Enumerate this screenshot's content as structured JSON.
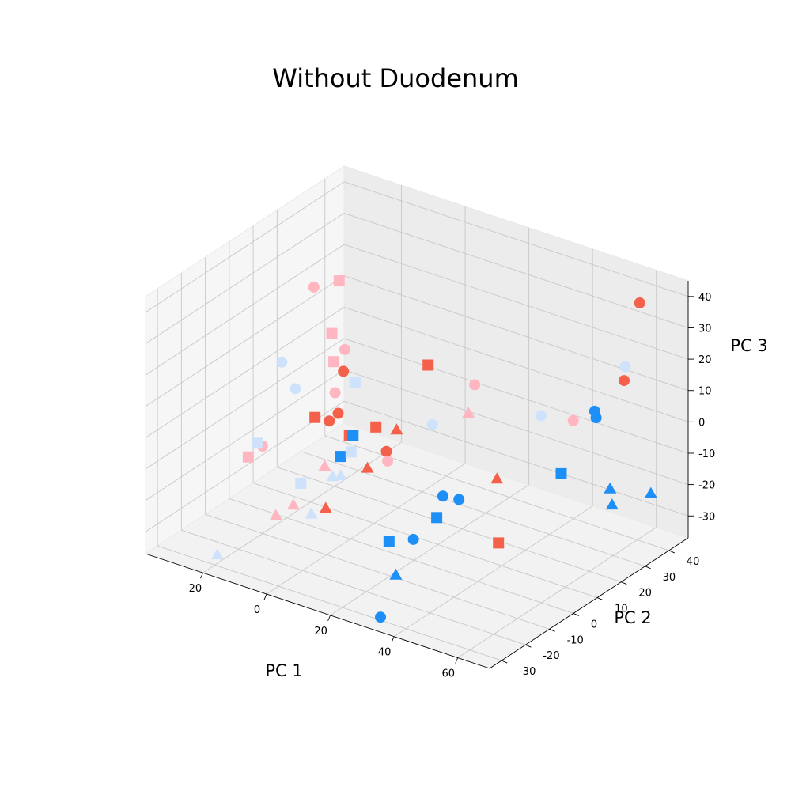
{
  "chart_data": {
    "type": "scatter",
    "projection": "3d",
    "title": "Without Duodenum",
    "xlabel": "PC 1",
    "ylabel": "PC 2",
    "zlabel": "PC 3",
    "xlim": [
      -38,
      70
    ],
    "ylim": [
      -35,
      48
    ],
    "zlim": [
      -37,
      45
    ],
    "xticks": [
      -20,
      0,
      20,
      40,
      60
    ],
    "yticks": [
      -30,
      -20,
      -10,
      0,
      10,
      20,
      30,
      40
    ],
    "zticks": [
      -30,
      -20,
      -10,
      0,
      10,
      20,
      30,
      40
    ],
    "grid": true,
    "legend": null,
    "colors": {
      "tomato": "#f4604a",
      "pink": "#ffb6c1",
      "dodgerblue": "#1e8ff7",
      "lightblue": "#cfe2fb",
      "pane": "#f2f2f2",
      "pane_edge": "#e9e9e9",
      "grid": "#c8c8c8"
    },
    "series": [
      {
        "color": "#f4604a",
        "marker": "circle",
        "points": [
          [
            55.0,
            47.7,
            33.0
          ],
          [
            54.4,
            42.0,
            10.9
          ],
          [
            -8.4,
            8.3,
            9.5
          ],
          [
            -7.2,
            4.5,
            -1.6
          ],
          [
            -9.6,
            4.0,
            -4.6
          ],
          [
            5.1,
            8.3,
            -11.5
          ]
        ]
      },
      {
        "color": "#f4604a",
        "marker": "square",
        "points": [
          [
            16.0,
            11.2,
            18.3
          ],
          [
            -15.6,
            6.0,
            -6.5
          ],
          [
            -1.8,
            2.0,
            -5.7
          ],
          [
            2.4,
            7.5,
            -4.2
          ],
          [
            45.0,
            2.0,
            -24.0
          ]
        ]
      },
      {
        "color": "#f4604a",
        "marker": "triangle",
        "points": [
          [
            34.7,
            15.1,
            -13.6
          ],
          [
            4.7,
            13.1,
            -7.1
          ],
          [
            2.6,
            3.7,
            -15.3
          ],
          [
            -1.8,
            -7.9,
            -23.8
          ]
        ]
      },
      {
        "color": "#ffb6c1",
        "marker": "circle",
        "points": [
          [
            -31.5,
            26.7,
            19.3
          ],
          [
            23.1,
            21.2,
            9.4
          ],
          [
            53.0,
            22.6,
            7.4
          ],
          [
            -16.0,
            19.0,
            8.5
          ],
          [
            -10.2,
            7.2,
            2.6
          ],
          [
            -20.8,
            -9.0,
            -9.9
          ],
          [
            8.4,
            4.4,
            -11.5
          ]
        ]
      },
      {
        "color": "#ffb6c1",
        "marker": "square",
        "points": [
          [
            -21.8,
            21.3,
            10.5
          ],
          [
            -27.0,
            31.3,
            20.5
          ],
          [
            -18.3,
            17.5,
            4.6
          ],
          [
            -24.0,
            -10.7,
            -13.6
          ]
        ]
      },
      {
        "color": "#ffb6c1",
        "marker": "triangle",
        "points": [
          [
            17.4,
            26.2,
            -4.1
          ],
          [
            -10.3,
            -17.4,
            -24.2
          ],
          [
            -4.9,
            -4.2,
            -13.3
          ],
          [
            -8.2,
            -12.9,
            -22.4
          ]
        ]
      },
      {
        "color": "#1e8ff7",
        "marker": "circle",
        "points": [
          [
            51.6,
            34.0,
            2.1
          ],
          [
            70.0,
            8.9,
            23.0
          ],
          [
            32.8,
            -5.0,
            -9.7
          ],
          [
            41.6,
            -10.0,
            -5.3
          ],
          [
            34.5,
            -19.6,
            -15.6
          ],
          [
            32.2,
            -30.3,
            -35.8
          ]
        ]
      },
      {
        "color": "#1e8ff7",
        "marker": "square",
        "points": [
          [
            -3.8,
            6.2,
            -8.3
          ],
          [
            -3.6,
            0.6,
            -12.2
          ],
          [
            58.0,
            10.9,
            -2.0
          ],
          [
            38.6,
            -15.3,
            -9.4
          ],
          [
            30.9,
            -25.0,
            -14.8
          ]
        ]
      },
      {
        "color": "#1e8ff7",
        "marker": "triangle",
        "points": [
          [
            59.0,
            30.0,
            -16.0
          ],
          [
            74.8,
            26.0,
            -10.1
          ],
          [
            67.0,
            20.2,
            -13.5
          ],
          [
            38.0,
            -31.6,
            -19.7
          ]
        ]
      },
      {
        "color": "#cfe2fb",
        "marker": "circle",
        "points": [
          [
            58.3,
            37.3,
            19.0
          ],
          [
            -26.0,
            6.0,
            7.6
          ],
          [
            -22.1,
            6.5,
            0.2
          ],
          [
            34.6,
            33.6,
            -2.8
          ],
          [
            14.5,
            15.0,
            -3.1
          ]
        ]
      },
      {
        "color": "#cfe2fb",
        "marker": "square",
        "points": [
          [
            -10.0,
            15.3,
            2.0
          ],
          [
            -23.3,
            -8.0,
            -10.3
          ],
          [
            -3.9,
            5.5,
            -13.3
          ],
          [
            -8.3,
            -9.6,
            -17.2
          ]
        ]
      },
      {
        "color": "#cfe2fb",
        "marker": "triangle",
        "points": [
          [
            -0.7,
            -6.5,
            -14.0
          ],
          [
            -1.7,
            -1.8,
            -16.4
          ],
          [
            -18.1,
            -31.5,
            -32.3
          ],
          [
            -1.5,
            -14.3,
            -22.3
          ]
        ]
      }
    ]
  }
}
